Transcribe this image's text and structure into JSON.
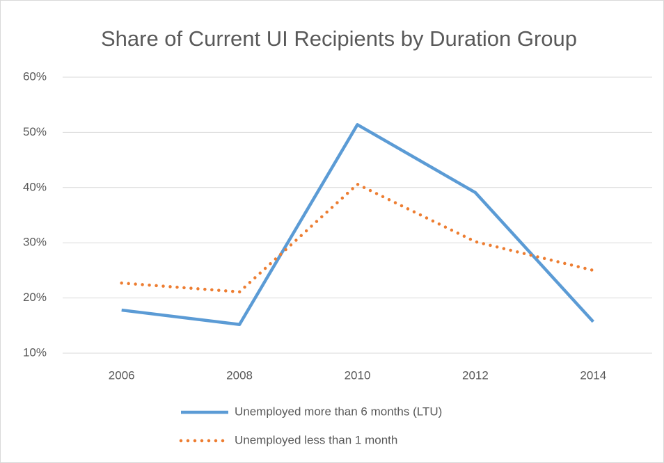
{
  "chart_data": {
    "type": "line",
    "title": "Share of Current UI Recipients by Duration Group",
    "categories": [
      "2006",
      "2008",
      "2010",
      "2012",
      "2014"
    ],
    "series": [
      {
        "name": "Unemployed more than 6 months (LTU)",
        "color": "#5b9bd5",
        "style": "solid",
        "values": [
          17.8,
          15.2,
          51.4,
          39.1,
          15.7
        ]
      },
      {
        "name": "Unemployed less than 1 month",
        "color": "#ed7d31",
        "style": "dotted",
        "values": [
          22.7,
          21.1,
          40.6,
          30.2,
          25.0
        ]
      }
    ],
    "ylim": [
      10,
      60
    ],
    "yticks": [
      {
        "value": 10,
        "label": "10%"
      },
      {
        "value": 20,
        "label": "20%"
      },
      {
        "value": 30,
        "label": "30%"
      },
      {
        "value": 40,
        "label": "40%"
      },
      {
        "value": 50,
        "label": "50%"
      },
      {
        "value": 60,
        "label": "60%"
      }
    ],
    "grid": true,
    "legend": "bottom"
  }
}
